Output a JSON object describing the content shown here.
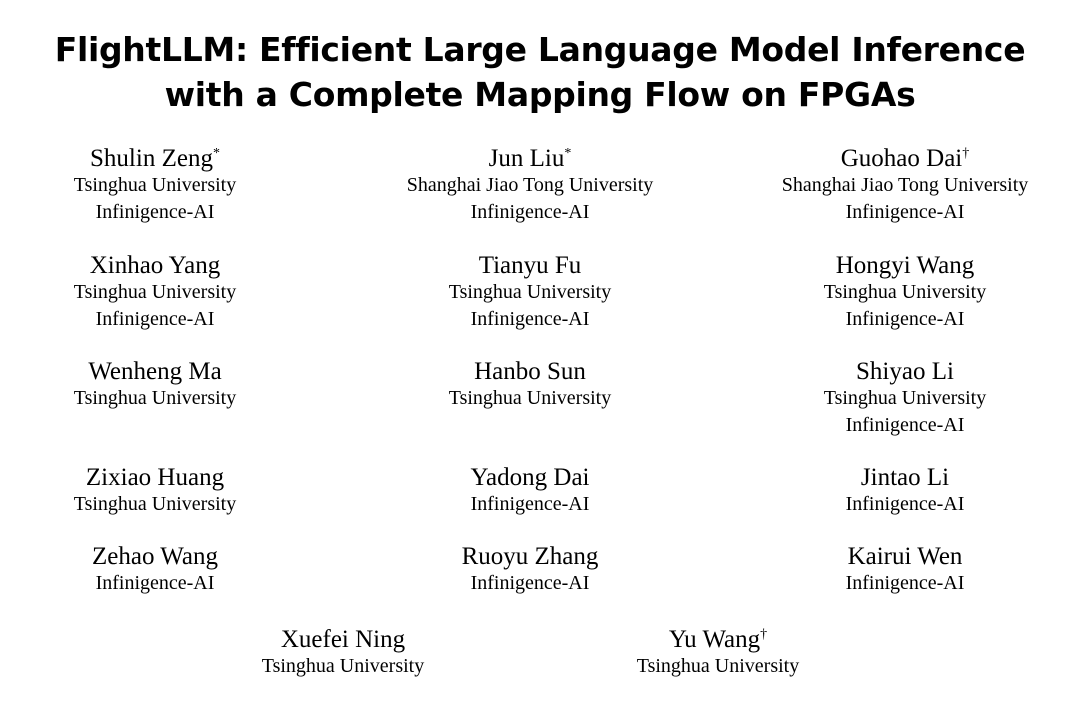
{
  "title": {
    "line1": "FlightLLM: Efficient Large Language Model Inference",
    "line2": "with a Complete Mapping Flow on FPGAs"
  },
  "authors": [
    {
      "name": "Shulin Zeng",
      "mark": "*",
      "affiliations": [
        "Tsinghua University",
        "Infinigence-AI"
      ]
    },
    {
      "name": "Jun Liu",
      "mark": "*",
      "affiliations": [
        "Shanghai Jiao Tong University",
        "Infinigence-AI"
      ]
    },
    {
      "name": "Guohao Dai",
      "mark": "†",
      "affiliations": [
        "Shanghai Jiao Tong University",
        "Infinigence-AI"
      ]
    },
    {
      "name": "Xinhao Yang",
      "mark": "",
      "affiliations": [
        "Tsinghua University",
        "Infinigence-AI"
      ]
    },
    {
      "name": "Tianyu Fu",
      "mark": "",
      "affiliations": [
        "Tsinghua University",
        "Infinigence-AI"
      ]
    },
    {
      "name": "Hongyi Wang",
      "mark": "",
      "affiliations": [
        "Tsinghua University",
        "Infinigence-AI"
      ]
    },
    {
      "name": "Wenheng Ma",
      "mark": "",
      "affiliations": [
        "Tsinghua University"
      ]
    },
    {
      "name": "Hanbo Sun",
      "mark": "",
      "affiliations": [
        "Tsinghua University"
      ]
    },
    {
      "name": "Shiyao Li",
      "mark": "",
      "affiliations": [
        "Tsinghua University",
        "Infinigence-AI"
      ]
    },
    {
      "name": "Zixiao Huang",
      "mark": "",
      "affiliations": [
        "Tsinghua University"
      ]
    },
    {
      "name": "Yadong Dai",
      "mark": "",
      "affiliations": [
        "Infinigence-AI"
      ]
    },
    {
      "name": "Jintao Li",
      "mark": "",
      "affiliations": [
        "Infinigence-AI"
      ]
    },
    {
      "name": "Zehao Wang",
      "mark": "",
      "affiliations": [
        "Infinigence-AI"
      ]
    },
    {
      "name": "Ruoyu Zhang",
      "mark": "",
      "affiliations": [
        "Infinigence-AI"
      ]
    },
    {
      "name": "Kairui Wen",
      "mark": "",
      "affiliations": [
        "Infinigence-AI"
      ]
    },
    {
      "name": "Xuefei Ning",
      "mark": "",
      "affiliations": [
        "Tsinghua University"
      ]
    },
    {
      "name": "Yu Wang",
      "mark": "†",
      "affiliations": [
        "Tsinghua University"
      ]
    }
  ]
}
